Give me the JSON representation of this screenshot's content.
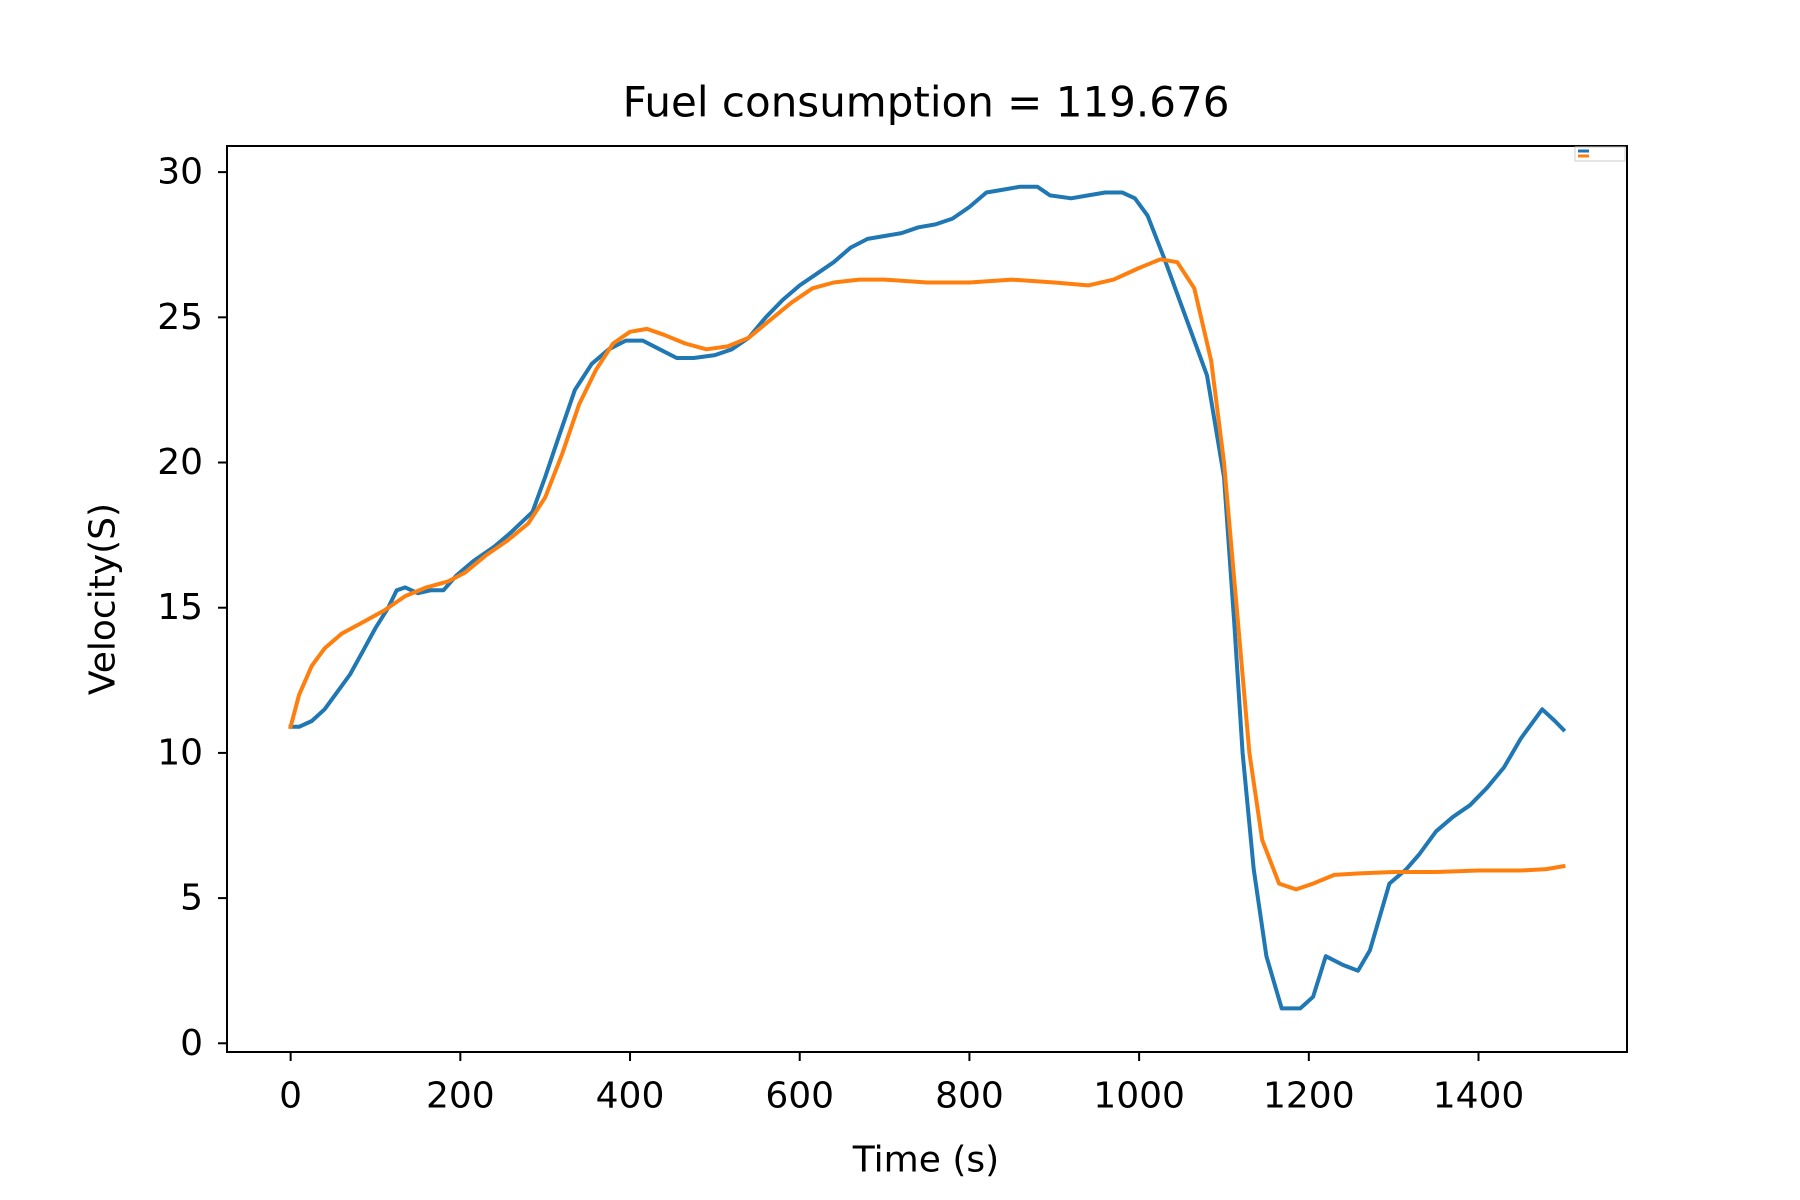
{
  "chart_data": {
    "type": "line",
    "title": "Fuel consumption = 119.676",
    "xlabel": "Time (s)",
    "ylabel": "Velocity(S)",
    "xlim": [
      -75,
      1575
    ],
    "ylim": [
      -0.3,
      30.9
    ],
    "xticks": [
      0,
      200,
      400,
      600,
      800,
      1000,
      1200,
      1400
    ],
    "yticks": [
      0,
      5,
      10,
      15,
      20,
      25,
      30
    ],
    "grid": false,
    "legend_position": "top-right",
    "series": [
      {
        "name": "",
        "color": "#1f77b4",
        "points": [
          [
            0,
            10.9
          ],
          [
            10,
            10.9
          ],
          [
            25,
            11.1
          ],
          [
            40,
            11.5
          ],
          [
            55,
            12.1
          ],
          [
            70,
            12.7
          ],
          [
            85,
            13.5
          ],
          [
            100,
            14.3
          ],
          [
            115,
            15.0
          ],
          [
            125,
            15.6
          ],
          [
            135,
            15.7
          ],
          [
            150,
            15.5
          ],
          [
            165,
            15.6
          ],
          [
            180,
            15.6
          ],
          [
            195,
            16.1
          ],
          [
            215,
            16.6
          ],
          [
            240,
            17.1
          ],
          [
            260,
            17.6
          ],
          [
            285,
            18.3
          ],
          [
            300,
            19.5
          ],
          [
            315,
            20.8
          ],
          [
            335,
            22.5
          ],
          [
            355,
            23.4
          ],
          [
            375,
            23.9
          ],
          [
            395,
            24.2
          ],
          [
            415,
            24.2
          ],
          [
            435,
            23.9
          ],
          [
            455,
            23.6
          ],
          [
            475,
            23.6
          ],
          [
            500,
            23.7
          ],
          [
            520,
            23.9
          ],
          [
            540,
            24.3
          ],
          [
            560,
            25.0
          ],
          [
            580,
            25.6
          ],
          [
            600,
            26.1
          ],
          [
            620,
            26.5
          ],
          [
            640,
            26.9
          ],
          [
            660,
            27.4
          ],
          [
            680,
            27.7
          ],
          [
            700,
            27.8
          ],
          [
            720,
            27.9
          ],
          [
            740,
            28.1
          ],
          [
            760,
            28.2
          ],
          [
            780,
            28.4
          ],
          [
            800,
            28.8
          ],
          [
            820,
            29.3
          ],
          [
            840,
            29.4
          ],
          [
            860,
            29.5
          ],
          [
            880,
            29.5
          ],
          [
            895,
            29.2
          ],
          [
            920,
            29.1
          ],
          [
            940,
            29.2
          ],
          [
            960,
            29.3
          ],
          [
            980,
            29.3
          ],
          [
            995,
            29.1
          ],
          [
            1010,
            28.5
          ],
          [
            1030,
            27.0
          ],
          [
            1055,
            25.0
          ],
          [
            1080,
            23.0
          ],
          [
            1100,
            19.5
          ],
          [
            1112,
            14.5
          ],
          [
            1122,
            10.0
          ],
          [
            1135,
            6.0
          ],
          [
            1150,
            3.0
          ],
          [
            1168,
            1.2
          ],
          [
            1190,
            1.2
          ],
          [
            1205,
            1.6
          ],
          [
            1220,
            3.0
          ],
          [
            1240,
            2.7
          ],
          [
            1258,
            2.5
          ],
          [
            1272,
            3.2
          ],
          [
            1295,
            5.5
          ],
          [
            1315,
            6.0
          ],
          [
            1330,
            6.5
          ],
          [
            1350,
            7.3
          ],
          [
            1370,
            7.8
          ],
          [
            1390,
            8.2
          ],
          [
            1410,
            8.8
          ],
          [
            1430,
            9.5
          ],
          [
            1450,
            10.5
          ],
          [
            1475,
            11.5
          ],
          [
            1490,
            11.1
          ],
          [
            1500,
            10.8
          ]
        ]
      },
      {
        "name": "",
        "color": "#ff7f0e",
        "points": [
          [
            0,
            10.9
          ],
          [
            10,
            12.0
          ],
          [
            25,
            13.0
          ],
          [
            40,
            13.6
          ],
          [
            60,
            14.1
          ],
          [
            85,
            14.5
          ],
          [
            110,
            14.9
          ],
          [
            135,
            15.4
          ],
          [
            160,
            15.7
          ],
          [
            185,
            15.9
          ],
          [
            205,
            16.2
          ],
          [
            230,
            16.8
          ],
          [
            255,
            17.3
          ],
          [
            280,
            17.9
          ],
          [
            300,
            18.8
          ],
          [
            320,
            20.3
          ],
          [
            340,
            22.0
          ],
          [
            360,
            23.2
          ],
          [
            380,
            24.1
          ],
          [
            400,
            24.5
          ],
          [
            420,
            24.6
          ],
          [
            440,
            24.4
          ],
          [
            465,
            24.1
          ],
          [
            490,
            23.9
          ],
          [
            515,
            24.0
          ],
          [
            540,
            24.3
          ],
          [
            565,
            24.9
          ],
          [
            590,
            25.5
          ],
          [
            615,
            26.0
          ],
          [
            640,
            26.2
          ],
          [
            670,
            26.3
          ],
          [
            700,
            26.3
          ],
          [
            750,
            26.2
          ],
          [
            800,
            26.2
          ],
          [
            850,
            26.3
          ],
          [
            900,
            26.2
          ],
          [
            940,
            26.1
          ],
          [
            970,
            26.3
          ],
          [
            1000,
            26.7
          ],
          [
            1025,
            27.0
          ],
          [
            1045,
            26.9
          ],
          [
            1065,
            26.0
          ],
          [
            1085,
            23.5
          ],
          [
            1100,
            20.0
          ],
          [
            1115,
            15.0
          ],
          [
            1130,
            10.0
          ],
          [
            1145,
            7.0
          ],
          [
            1165,
            5.5
          ],
          [
            1185,
            5.3
          ],
          [
            1205,
            5.5
          ],
          [
            1230,
            5.8
          ],
          [
            1260,
            5.85
          ],
          [
            1300,
            5.9
          ],
          [
            1350,
            5.9
          ],
          [
            1400,
            5.95
          ],
          [
            1450,
            5.95
          ],
          [
            1480,
            6.0
          ],
          [
            1500,
            6.1
          ]
        ]
      }
    ]
  }
}
